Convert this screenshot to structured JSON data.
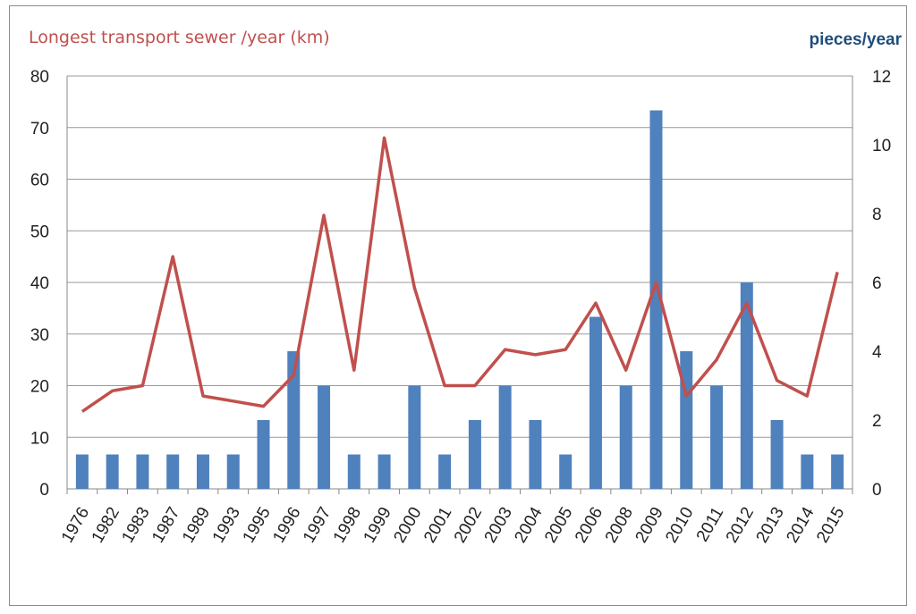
{
  "chart_data": {
    "type": "bar+line",
    "title_left": "Longest transport sewer  /year (km)",
    "title_right": "pieces/year",
    "categories": [
      "1976",
      "1982",
      "1983",
      "1987",
      "1989",
      "1993",
      "1995",
      "1996",
      "1997",
      "1998",
      "1999",
      "2000",
      "2001",
      "2002",
      "2003",
      "2004",
      "2005",
      "2006",
      "2008",
      "2009",
      "2010",
      "2011",
      "2012",
      "2013",
      "2014",
      "2015"
    ],
    "bars": {
      "axis": "right",
      "color": "#4f81bd",
      "values": [
        1,
        1,
        1,
        1,
        1,
        1,
        2,
        4,
        3,
        1,
        1,
        3,
        1,
        2,
        3,
        2,
        1,
        5,
        3,
        11,
        4,
        3,
        6,
        2,
        1,
        1
      ]
    },
    "line": {
      "axis": "left",
      "color": "#c0504d",
      "values": [
        15,
        19,
        20,
        45,
        18,
        17,
        16,
        22,
        53,
        23,
        68,
        39,
        20,
        20,
        27,
        26,
        27,
        36,
        23,
        40,
        18,
        25,
        36,
        21,
        18,
        42
      ]
    },
    "left_axis": {
      "ylim": [
        0,
        80
      ],
      "ticks": [
        "0",
        "10",
        "20",
        "30",
        "40",
        "50",
        "60",
        "70",
        "80"
      ],
      "color": "#c0504d"
    },
    "right_axis": {
      "ylim": [
        0,
        12
      ],
      "ticks": [
        "0",
        "2",
        "4",
        "6",
        "8",
        "10",
        "12"
      ],
      "color": "#1f4e79"
    },
    "grid": true
  }
}
